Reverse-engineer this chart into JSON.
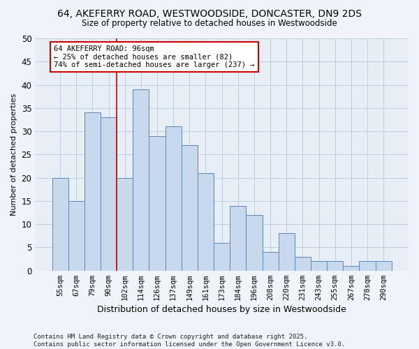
{
  "title1": "64, AKEFERRY ROAD, WESTWOODSIDE, DONCASTER, DN9 2DS",
  "title2": "Size of property relative to detached houses in Westwoodside",
  "xlabel": "Distribution of detached houses by size in Westwoodside",
  "ylabel": "Number of detached properties",
  "categories": [
    "55sqm",
    "67sqm",
    "79sqm",
    "90sqm",
    "102sqm",
    "114sqm",
    "126sqm",
    "137sqm",
    "149sqm",
    "161sqm",
    "173sqm",
    "184sqm",
    "196sqm",
    "208sqm",
    "220sqm",
    "231sqm",
    "243sqm",
    "255sqm",
    "267sqm",
    "278sqm",
    "290sqm"
  ],
  "values": [
    20,
    15,
    34,
    33,
    20,
    39,
    29,
    31,
    27,
    21,
    6,
    14,
    12,
    4,
    8,
    3,
    2,
    2,
    1,
    2,
    2
  ],
  "bar_color": "#c9d9ed",
  "bar_edge_color": "#5b87b5",
  "grid_color": "#b8cfe0",
  "bg_color": "#e8eef6",
  "fig_color": "#f0f4fa",
  "vline_x_index": 3,
  "vline_color": "#cc0000",
  "annotation_text": "64 AKEFERRY ROAD: 96sqm\n← 25% of detached houses are smaller (82)\n74% of semi-detached houses are larger (237) →",
  "annotation_box_color": "white",
  "annotation_box_edge": "#cc0000",
  "ylim": [
    0,
    50
  ],
  "yticks": [
    0,
    5,
    10,
    15,
    20,
    25,
    30,
    35,
    40,
    45,
    50
  ],
  "footer": "Contains HM Land Registry data © Crown copyright and database right 2025.\nContains public sector information licensed under the Open Government Licence v3.0."
}
